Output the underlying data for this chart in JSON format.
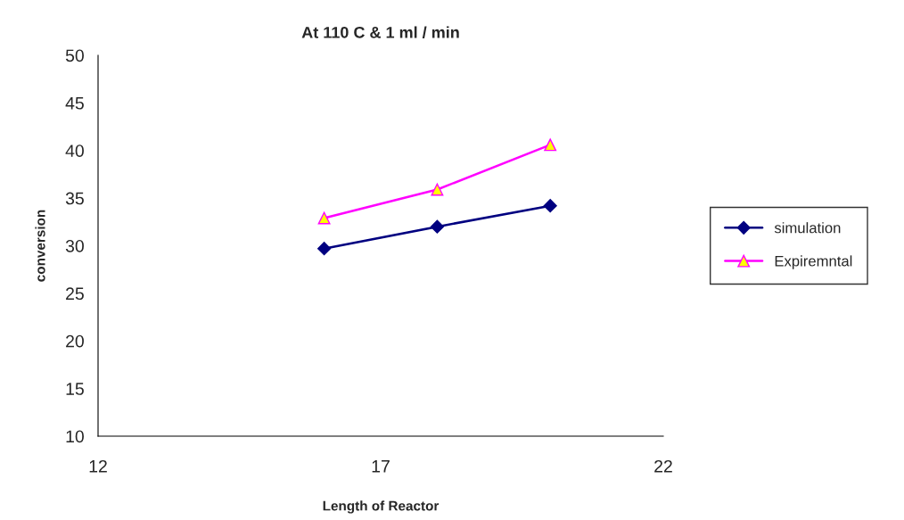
{
  "chart_data": {
    "type": "line",
    "title": "At 110 C & 1 ml / min",
    "xlabel": "Length of Reactor",
    "ylabel": "conversion",
    "x": [
      16,
      18,
      20
    ],
    "series": [
      {
        "name": "simulation",
        "color": "#000080",
        "marker": "diamond",
        "values": [
          29.7,
          32.0,
          34.2
        ]
      },
      {
        "name": "Expiremntal",
        "color": "#ff00ff",
        "marker": "triangle",
        "values": [
          32.9,
          35.9,
          40.6
        ]
      }
    ],
    "xlim": [
      12,
      22
    ],
    "xticks": [
      12,
      17,
      22
    ],
    "ylim": [
      10,
      50
    ],
    "yticks": [
      10,
      15,
      20,
      25,
      30,
      35,
      40,
      45,
      50
    ],
    "grid": false,
    "legend": "right"
  }
}
